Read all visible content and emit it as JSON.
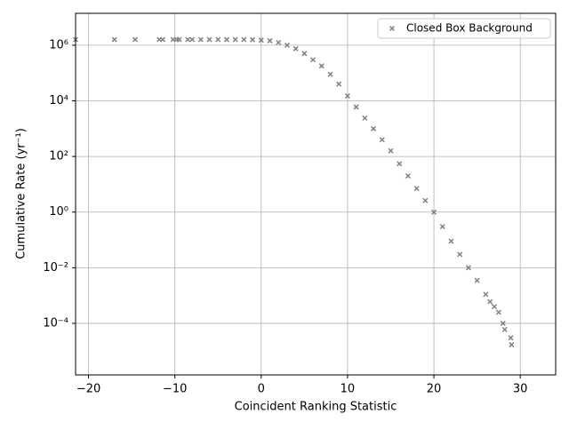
{
  "chart_data": {
    "type": "scatter",
    "x_label": "Coincident Ranking Statistic",
    "y_label": "Cumulative Rate (yr⁻¹)",
    "log_y": true,
    "grid": true,
    "legend_position": "upper right",
    "xlim": [
      -21.5,
      34.1
    ],
    "ylim": [
      1.4e-06,
      14000000.0
    ],
    "xticks": [
      {
        "value": -20,
        "label": "−20"
      },
      {
        "value": -10,
        "label": "−10"
      },
      0,
      10,
      20,
      30
    ],
    "yticks": [
      {
        "value": 0.0001,
        "label": "10⁻⁴"
      },
      {
        "value": 0.01,
        "label": "10⁻²"
      },
      {
        "value": 1,
        "label": "10⁰"
      },
      {
        "value": 100,
        "label": "10²"
      },
      {
        "value": 10000,
        "label": "10⁴"
      },
      {
        "value": 1000000,
        "label": "10⁶"
      }
    ],
    "series": [
      {
        "name": "Closed Box Background",
        "color": "#808080",
        "x": [
          -21.5,
          -17,
          -14.6,
          -11.8,
          -11.4,
          -10.2,
          -9.8,
          -9.5,
          -8.5,
          -8,
          -7,
          -6,
          -5,
          -4,
          -3,
          -2,
          -1,
          0,
          1,
          2,
          3,
          4,
          5,
          6,
          7,
          8,
          9,
          10,
          11,
          12,
          13,
          14,
          15,
          16,
          17,
          18,
          19,
          20,
          21,
          22,
          23,
          24,
          25,
          26,
          26.5,
          27,
          27.5,
          28,
          28.2,
          28.9,
          29
        ],
        "values": [
          1600000,
          1600000,
          1600000,
          1600000,
          1600000,
          1600000,
          1600000,
          1600000,
          1600000,
          1600000,
          1600000,
          1600000,
          1600000,
          1600000,
          1600000,
          1600000,
          1580000,
          1520000,
          1450000,
          1250000,
          1000000,
          750000,
          500000,
          300000,
          180000,
          90000,
          40000,
          15000,
          6000,
          2400,
          1000,
          400,
          160,
          55,
          20,
          7,
          2.6,
          1,
          0.3,
          0.09,
          0.03,
          0.01,
          0.0035,
          0.0011,
          0.0006,
          0.0004,
          0.00025,
          0.0001,
          6e-05,
          3e-05,
          1.7e-05
        ]
      }
    ]
  }
}
